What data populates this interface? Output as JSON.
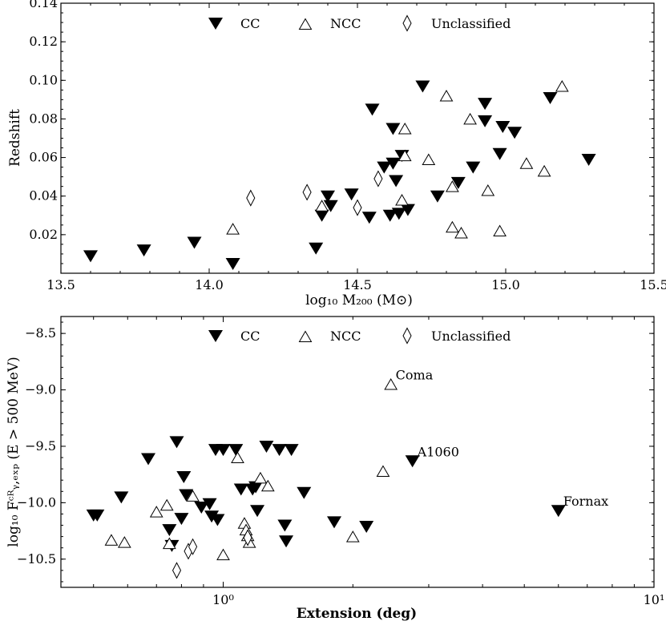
{
  "chart_data": [
    {
      "type": "scatter",
      "xlabel": "log₁₀ M₂₀₀ (M⊙)",
      "ylabel": "Redshift",
      "xlim": [
        13.5,
        15.5
      ],
      "ylim": [
        0.0,
        0.14
      ],
      "xticks": [
        "13.5",
        "14.0",
        "14.5",
        "15.0",
        "15.5"
      ],
      "yticks": [
        "0.02",
        "0.04",
        "0.06",
        "0.08",
        "0.10",
        "0.12",
        "0.14"
      ],
      "legend": [
        "CC",
        "NCC",
        "Unclassified"
      ],
      "series": [
        {
          "name": "CC",
          "marker": "triangle-down-filled",
          "points": [
            [
              13.6,
              0.009
            ],
            [
              13.78,
              0.012
            ],
            [
              13.95,
              0.016
            ],
            [
              14.08,
              0.005
            ],
            [
              14.36,
              0.013
            ],
            [
              14.38,
              0.03
            ],
            [
              14.4,
              0.04
            ],
            [
              14.41,
              0.035
            ],
            [
              14.48,
              0.041
            ],
            [
              14.54,
              0.029
            ],
            [
              14.55,
              0.085
            ],
            [
              14.59,
              0.055
            ],
            [
              14.61,
              0.03
            ],
            [
              14.62,
              0.057
            ],
            [
              14.62,
              0.075
            ],
            [
              14.63,
              0.048
            ],
            [
              14.64,
              0.031
            ],
            [
              14.65,
              0.061
            ],
            [
              14.67,
              0.033
            ],
            [
              14.72,
              0.097
            ],
            [
              14.77,
              0.04
            ],
            [
              14.84,
              0.047
            ],
            [
              14.89,
              0.055
            ],
            [
              14.93,
              0.088
            ],
            [
              14.93,
              0.079
            ],
            [
              14.98,
              0.062
            ],
            [
              14.99,
              0.076
            ],
            [
              15.03,
              0.073
            ],
            [
              15.15,
              0.091
            ],
            [
              15.28,
              0.059
            ]
          ]
        },
        {
          "name": "NCC",
          "marker": "triangle-up-open",
          "points": [
            [
              14.08,
              0.023
            ],
            [
              14.38,
              0.035
            ],
            [
              14.65,
              0.038
            ],
            [
              14.66,
              0.061
            ],
            [
              14.66,
              0.075
            ],
            [
              14.74,
              0.059
            ],
            [
              14.8,
              0.092
            ],
            [
              14.82,
              0.045
            ],
            [
              14.82,
              0.024
            ],
            [
              14.85,
              0.021
            ],
            [
              14.88,
              0.08
            ],
            [
              14.94,
              0.043
            ],
            [
              14.98,
              0.022
            ],
            [
              15.07,
              0.057
            ],
            [
              15.13,
              0.053
            ],
            [
              15.19,
              0.097
            ]
          ]
        },
        {
          "name": "Unclassified",
          "marker": "diamond-open",
          "points": [
            [
              14.14,
              0.039
            ],
            [
              14.33,
              0.042
            ],
            [
              14.5,
              0.034
            ],
            [
              14.57,
              0.049
            ]
          ]
        }
      ]
    },
    {
      "type": "scatter",
      "xscale": "log",
      "xlabel": "Extension (deg)",
      "ylabel": "log₁₀ Fᶜᴿᵧ,ₑₓₚ (E > 500 MeV)",
      "xlim": [
        0.42,
        10
      ],
      "ylim": [
        -10.75,
        -8.35
      ],
      "xticks": [
        "10⁰",
        "10¹"
      ],
      "yticks": [
        "−10.5",
        "−10.0",
        "−9.5",
        "−9.0",
        "−8.5"
      ],
      "legend": [
        "CC",
        "NCC",
        "Unclassified"
      ],
      "annotations": [
        {
          "text": "Coma",
          "x": 2.45,
          "y": -8.95
        },
        {
          "text": "A1060",
          "x": 2.75,
          "y": -9.63
        },
        {
          "text": "Fornax",
          "x": 6.0,
          "y": -10.07
        }
      ],
      "series": [
        {
          "name": "CC",
          "marker": "triangle-down-filled",
          "points": [
            [
              0.5,
              -10.11
            ],
            [
              0.51,
              -10.11
            ],
            [
              0.58,
              -9.95
            ],
            [
              0.67,
              -9.61
            ],
            [
              0.75,
              -10.24
            ],
            [
              0.76,
              -10.38
            ],
            [
              0.78,
              -9.46
            ],
            [
              0.8,
              -10.14
            ],
            [
              0.81,
              -9.77
            ],
            [
              0.82,
              -9.93
            ],
            [
              0.89,
              -10.04
            ],
            [
              0.93,
              -10.01
            ],
            [
              0.94,
              -10.12
            ],
            [
              0.96,
              -9.53
            ],
            [
              0.97,
              -10.15
            ],
            [
              1.0,
              -9.53
            ],
            [
              1.07,
              -9.53
            ],
            [
              1.1,
              -9.88
            ],
            [
              1.17,
              -9.88
            ],
            [
              1.19,
              -9.86
            ],
            [
              1.2,
              -10.07
            ],
            [
              1.26,
              -9.5
            ],
            [
              1.35,
              -9.53
            ],
            [
              1.39,
              -10.2
            ],
            [
              1.4,
              -10.34
            ],
            [
              1.44,
              -9.53
            ],
            [
              1.54,
              -9.91
            ],
            [
              1.81,
              -10.17
            ],
            [
              2.15,
              -10.21
            ],
            [
              2.75,
              -9.63
            ],
            [
              6.0,
              -10.07
            ]
          ]
        },
        {
          "name": "NCC",
          "marker": "triangle-up-open",
          "points": [
            [
              0.55,
              -10.33
            ],
            [
              0.59,
              -10.35
            ],
            [
              0.7,
              -10.08
            ],
            [
              0.74,
              -10.02
            ],
            [
              0.75,
              -10.36
            ],
            [
              0.85,
              -9.94
            ],
            [
              1.0,
              -10.46
            ],
            [
              1.08,
              -9.6
            ],
            [
              1.12,
              -10.18
            ],
            [
              1.13,
              -10.24
            ],
            [
              1.14,
              -10.29
            ],
            [
              1.15,
              -10.35
            ],
            [
              1.22,
              -9.78
            ],
            [
              1.27,
              -9.85
            ],
            [
              2.0,
              -10.3
            ],
            [
              2.35,
              -9.72
            ],
            [
              2.45,
              -8.95
            ]
          ]
        },
        {
          "name": "Unclassified",
          "marker": "diamond-open",
          "points": [
            [
              0.78,
              -10.6
            ],
            [
              0.83,
              -10.43
            ],
            [
              0.85,
              -10.39
            ],
            [
              1.14,
              -10.31
            ]
          ]
        }
      ]
    }
  ]
}
